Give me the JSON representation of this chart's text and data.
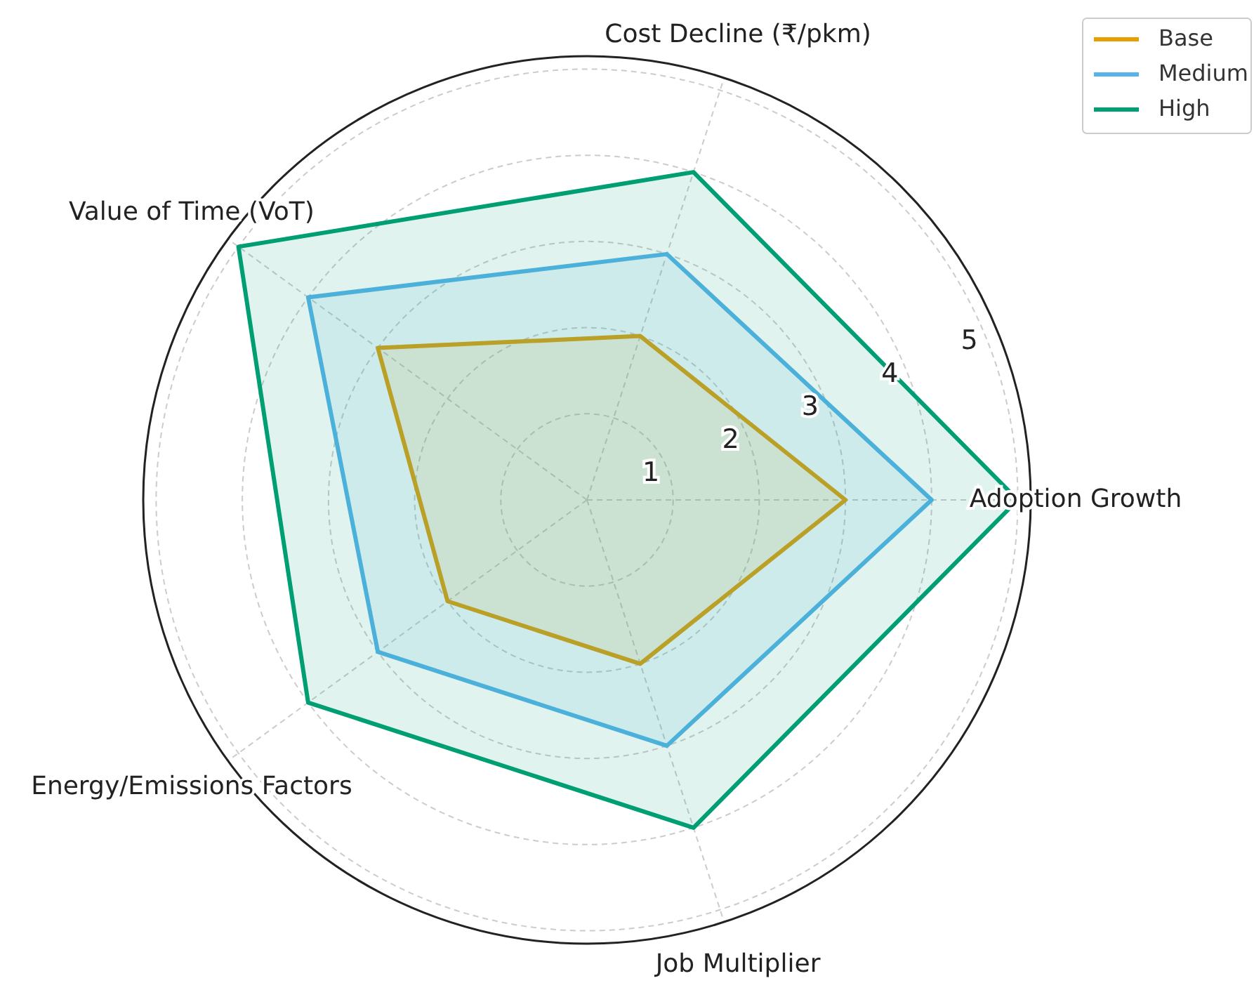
{
  "chart_data": {
    "type": "radar",
    "categories": [
      "Cost Decline (₹/pkm)",
      "Adoption Growth",
      "Job Multiplier",
      "Energy/Emissions Factors",
      "Value of Time (VoT)"
    ],
    "series": [
      {
        "name": "Base",
        "color": "#e69f00",
        "values": [
          2,
          3,
          2,
          2,
          3
        ]
      },
      {
        "name": "Medium",
        "color": "#56b4e9",
        "values": [
          3,
          4,
          3,
          3,
          4
        ]
      },
      {
        "name": "High",
        "color": "#009e73",
        "values": [
          4,
          5,
          4,
          4,
          5
        ]
      }
    ],
    "ylim": [
      0,
      5.15
    ],
    "yticks": [
      1,
      2,
      3,
      4,
      5
    ],
    "grid": true,
    "legend": "top right",
    "marker": "none",
    "line_style": "solid"
  }
}
